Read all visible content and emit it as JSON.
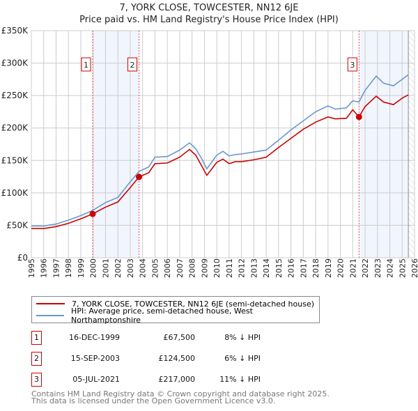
{
  "title": "7, YORK CLOSE, TOWCESTER, NN12 6JE",
  "subtitle": "Price paid vs. HM Land Registry's House Price Index (HPI)",
  "legend": [
    {
      "label": "7, YORK CLOSE, TOWCESTER, NN12 6JE (semi-detached house)",
      "color": "#cc0000"
    },
    {
      "label": "HPI: Average price, semi-detached house, West Northamptonshire",
      "color": "#6a96d0"
    }
  ],
  "transactions": [
    {
      "num": "1",
      "date": "16-DEC-1999",
      "price": "£67,500",
      "hpi": "8% ↓ HPI"
    },
    {
      "num": "2",
      "date": "15-SEP-2003",
      "price": "£124,500",
      "hpi": "6% ↓ HPI"
    },
    {
      "num": "3",
      "date": "05-JUL-2021",
      "price": "£217,000",
      "hpi": "11% ↓ HPI"
    }
  ],
  "footer": [
    "Contains HM Land Registry data © Crown copyright and database right 2025.",
    "This data is licensed under the Open Government Licence v3.0."
  ],
  "chart_data": {
    "type": "line",
    "xlim": [
      1995,
      2026
    ],
    "ylim": [
      0,
      350000
    ],
    "yticks": [
      0,
      50000,
      100000,
      150000,
      200000,
      250000,
      300000,
      350000
    ],
    "ytick_labels": [
      "£0",
      "£50K",
      "£100K",
      "£150K",
      "£200K",
      "£250K",
      "£300K",
      "£350K"
    ],
    "xticks": [
      1995,
      1996,
      1997,
      1998,
      1999,
      2000,
      2001,
      2002,
      2003,
      2004,
      2005,
      2006,
      2007,
      2008,
      2009,
      2010,
      2011,
      2012,
      2013,
      2014,
      2015,
      2016,
      2017,
      2018,
      2019,
      2020,
      2021,
      2022,
      2023,
      2024,
      2025,
      2026
    ],
    "x": [
      1995,
      1996,
      1997,
      1998,
      1999,
      1999.96,
      2001,
      2002,
      2003,
      2003.71,
      2004.5,
      2005,
      2006,
      2007,
      2007.8,
      2008.3,
      2008.8,
      2009.2,
      2010,
      2010.5,
      2011,
      2011.5,
      2012,
      2013,
      2014,
      2015,
      2016,
      2017,
      2018,
      2019,
      2019.6,
      2020.5,
      2021,
      2021.5,
      2022,
      2022.9,
      2023.5,
      2024.3,
      2025,
      2025.5
    ],
    "series": [
      {
        "name": "price_paid",
        "color": "#cc0000",
        "values": [
          45000,
          45000,
          48000,
          53000,
          60000,
          67500,
          78000,
          86000,
          108000,
          124500,
          131000,
          145000,
          146000,
          155000,
          167000,
          158000,
          141000,
          127000,
          147000,
          152000,
          145000,
          148000,
          148000,
          151000,
          155000,
          170000,
          184000,
          198000,
          209000,
          217000,
          214000,
          215000,
          228000,
          217000,
          233000,
          249000,
          240000,
          236000,
          246000,
          251000
        ]
      },
      {
        "name": "hpi",
        "color": "#6a96d0",
        "values": [
          49000,
          49000,
          52000,
          58000,
          65000,
          73000,
          85000,
          93000,
          117000,
          133000,
          140000,
          155000,
          156000,
          166000,
          177000,
          168000,
          152000,
          137000,
          158000,
          164000,
          157000,
          159000,
          160000,
          163000,
          166000,
          181000,
          197000,
          211000,
          225000,
          234000,
          229000,
          231000,
          242000,
          240000,
          258000,
          280000,
          269000,
          265000,
          275000,
          282000
        ]
      }
    ],
    "sales": [
      {
        "num": "1",
        "x": 1999.96,
        "y": 67500
      },
      {
        "num": "2",
        "x": 2003.71,
        "y": 124500
      },
      {
        "num": "3",
        "x": 2021.51,
        "y": 217000
      }
    ],
    "shaded": [
      [
        1999.96,
        2003.71
      ],
      [
        2021.51,
        2025.5
      ]
    ],
    "forecast_from": 2025.5
  }
}
